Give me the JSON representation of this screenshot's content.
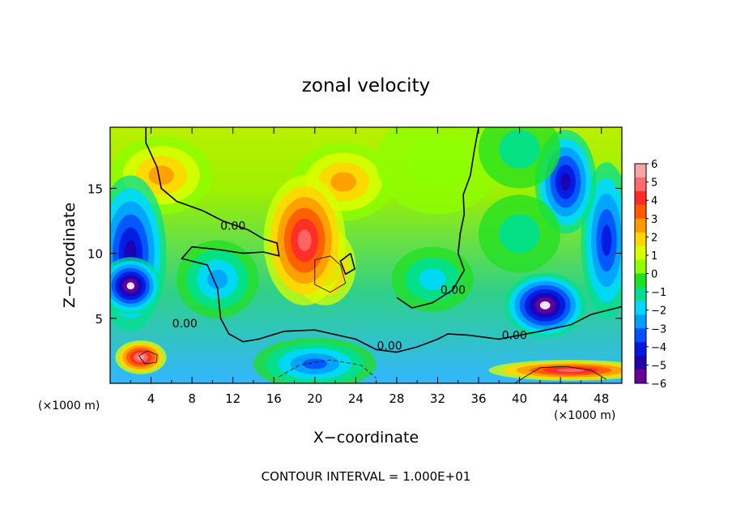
{
  "chart_data": {
    "type": "heatmap",
    "title": "zonal velocity",
    "xlabel": "X−coordinate",
    "ylabel": "Z−coordinate",
    "x_unit_label_left": "(×1000 m)",
    "x_unit_label_right": "(×1000 m)",
    "footer": "CONTOUR INTERVAL = 1.000E+01",
    "xlim": [
      0,
      50
    ],
    "ylim": [
      0,
      19.7
    ],
    "x_ticks": [
      {
        "value": 4,
        "label": "4"
      },
      {
        "value": 8,
        "label": "8"
      },
      {
        "value": 12,
        "label": "12"
      },
      {
        "value": 16,
        "label": "16"
      },
      {
        "value": 20,
        "label": "20"
      },
      {
        "value": 24,
        "label": "24"
      },
      {
        "value": 28,
        "label": "28"
      },
      {
        "value": 32,
        "label": "32"
      },
      {
        "value": 36,
        "label": "36"
      },
      {
        "value": 40,
        "label": "40"
      },
      {
        "value": 44,
        "label": "44"
      },
      {
        "value": 48,
        "label": "48"
      }
    ],
    "y_ticks": [
      {
        "value": 5,
        "label": "5"
      },
      {
        "value": 10,
        "label": "10"
      },
      {
        "value": 15,
        "label": "15"
      }
    ],
    "colorbar": {
      "range": [
        -6,
        6
      ],
      "labels": [
        "6",
        "5",
        "4",
        "3",
        "2",
        "1",
        "0",
        "−1",
        "−2",
        "−3",
        "−4",
        "−5",
        "−6"
      ],
      "colors": [
        "#f7a6a6",
        "#ff6b6b",
        "#ff2a2a",
        "#ff5a00",
        "#ff9a00",
        "#ffd600",
        "#d8ff00",
        "#8cff00",
        "#20e020",
        "#00e090",
        "#00d8ff",
        "#00a0ff",
        "#0050ff",
        "#0018e0",
        "#2000b0",
        "#6a009a"
      ]
    },
    "contour_labels": [
      {
        "text": "0.00",
        "x": 12,
        "y": 11.8
      },
      {
        "text": "0.00",
        "x": 7.3,
        "y": 4.3
      },
      {
        "text": "0.00",
        "x": 27.3,
        "y": 2.6
      },
      {
        "text": "0.00",
        "x": 33.5,
        "y": 6.9
      },
      {
        "text": "0.00",
        "x": 39.5,
        "y": 3.4
      }
    ],
    "features": [
      {
        "x": 21,
        "y": 9,
        "rx": 3,
        "ry": 3,
        "v": 3.2
      },
      {
        "x": 22.8,
        "y": 15.5,
        "rx": 5,
        "ry": 3,
        "v": 2.6
      },
      {
        "x": 19,
        "y": 11,
        "rx": 4,
        "ry": 5,
        "v": 4.8
      },
      {
        "x": 20,
        "y": 1.5,
        "rx": 6,
        "ry": 2,
        "v": -3.5
      },
      {
        "x": 5,
        "y": 16,
        "rx": 5,
        "ry": 3,
        "v": 3.0
      },
      {
        "x": 3,
        "y": 2.0,
        "rx": 2.5,
        "ry": 1.3,
        "v": 5.5
      },
      {
        "x": 45,
        "y": 1.0,
        "rx": 8,
        "ry": 0.8,
        "v": 5.0
      },
      {
        "x": 2,
        "y": 10,
        "rx": 3.5,
        "ry": 6,
        "v": -4.5
      },
      {
        "x": 48.5,
        "y": 11,
        "rx": 2.5,
        "ry": 6,
        "v": -3.8
      },
      {
        "x": 44.5,
        "y": 15.5,
        "rx": 3,
        "ry": 4,
        "v": -5.0
      },
      {
        "x": 40,
        "y": 11.5,
        "rx": 4,
        "ry": 3,
        "v": -1.2
      },
      {
        "x": 31.5,
        "y": 8,
        "rx": 4,
        "ry": 2.5,
        "v": -1.5
      },
      {
        "x": 10.5,
        "y": 8,
        "rx": 4,
        "ry": 3,
        "v": -2.8
      },
      {
        "x": 2,
        "y": 7.5,
        "rx": 3,
        "ry": 2.2,
        "v": -6.5
      },
      {
        "x": 42.5,
        "y": 6,
        "rx": 4,
        "ry": 2.5,
        "v": -6.5
      },
      {
        "x": 32,
        "y": 17,
        "rx": 6,
        "ry": 4,
        "v": 0.6
      },
      {
        "x": 40,
        "y": 18,
        "rx": 4,
        "ry": 3,
        "v": -0.8
      }
    ],
    "zero_contours": [
      [
        [
          3.5,
          19.7
        ],
        [
          3.5,
          18.5
        ],
        [
          4.6,
          16.6
        ],
        [
          5.0,
          15.0
        ],
        [
          6.5,
          14.0
        ],
        [
          9.0,
          13.3
        ],
        [
          11.0,
          12.5
        ],
        [
          13.5,
          11.8
        ],
        [
          15.0,
          11.1
        ],
        [
          16.3,
          10.8
        ],
        [
          16.5,
          9.8
        ],
        [
          15.0,
          10.1
        ],
        [
          13.0,
          10.0
        ],
        [
          10.5,
          10.3
        ],
        [
          8.0,
          10.5
        ],
        [
          7.0,
          9.6
        ],
        [
          9.5,
          9.1
        ],
        [
          10.5,
          7.3
        ],
        [
          10.8,
          5.0
        ],
        [
          11.6,
          3.8
        ],
        [
          13.0,
          3.2
        ],
        [
          14.5,
          3.4
        ],
        [
          17.0,
          4.0
        ],
        [
          20.0,
          4.1
        ],
        [
          24.0,
          3.4
        ],
        [
          26.0,
          2.6
        ],
        [
          28.0,
          2.4
        ],
        [
          30.0,
          2.8
        ],
        [
          32.0,
          3.4
        ],
        [
          33.0,
          3.8
        ],
        [
          35.0,
          3.7
        ],
        [
          38.0,
          3.4
        ],
        [
          42.0,
          4.0
        ],
        [
          45.0,
          4.5
        ],
        [
          47.0,
          5.3
        ],
        [
          50.0,
          5.9
        ]
      ],
      [
        [
          36.0,
          19.7
        ],
        [
          35.6,
          18.0
        ],
        [
          35.2,
          16.0
        ],
        [
          34.5,
          14.5
        ],
        [
          34.6,
          13.0
        ],
        [
          34.2,
          11.5
        ],
        [
          34.0,
          10.0
        ],
        [
          34.6,
          8.7
        ],
        [
          33.5,
          7.2
        ],
        [
          31.5,
          6.2
        ],
        [
          29.5,
          5.8
        ],
        [
          28.0,
          6.6
        ]
      ],
      [
        [
          23.5,
          10.0
        ],
        [
          22.5,
          9.4
        ],
        [
          23.0,
          8.4
        ],
        [
          23.9,
          8.8
        ],
        [
          23.5,
          10.0
        ]
      ]
    ],
    "thin_contours": [
      [
        [
          20.0,
          9.5
        ],
        [
          21.5,
          9.8
        ],
        [
          22.5,
          9.1
        ],
        [
          23.0,
          7.7
        ],
        [
          21.5,
          7.0
        ],
        [
          20.0,
          7.6
        ],
        [
          20.0,
          9.5
        ]
      ],
      [
        [
          2.8,
          2.1
        ],
        [
          3.6,
          2.5
        ],
        [
          4.6,
          2.2
        ],
        [
          4.5,
          1.6
        ],
        [
          3.4,
          1.5
        ],
        [
          2.8,
          2.1
        ]
      ],
      [
        [
          39.5,
          0.0
        ],
        [
          42.0,
          1.2
        ],
        [
          44.5,
          1.3
        ],
        [
          47.0,
          1.0
        ],
        [
          48.5,
          0.3
        ]
      ]
    ],
    "dashed_contours": [
      [
        [
          16.5,
          0.5
        ],
        [
          18.5,
          1.4
        ],
        [
          21.5,
          1.8
        ],
        [
          24.5,
          1.4
        ],
        [
          26.0,
          0.4
        ]
      ]
    ]
  }
}
